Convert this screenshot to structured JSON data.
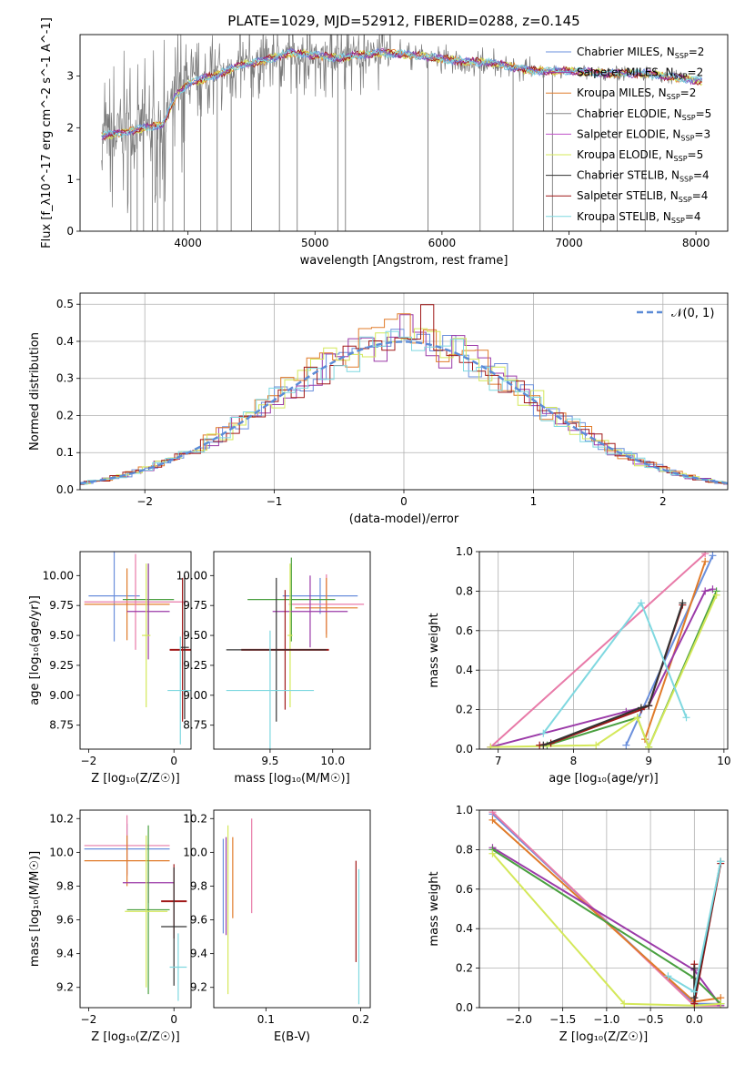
{
  "title": "PLATE=1029, MJD=52912, FIBERID=0288, z=0.145",
  "colors": {
    "chabrier_miles": "#6a8fdc",
    "salpeter_miles": "#9b3aa8",
    "kroupa_miles": "#e07b2a",
    "chabrier_elodie": "#888888",
    "salpeter_elodie": "#c050c8",
    "kroupa_elodie": "#d4e85a",
    "chabrier_stelib": "#333333",
    "salpeter_stelib": "#a01818",
    "kroupa_stelib": "#7fd8e0",
    "pink": "#e87aa8",
    "green": "#4aa040",
    "gaussian": "#5b8bd6"
  },
  "chart_data": [
    {
      "id": "spectrum",
      "type": "line",
      "xlabel": "wavelength [Angstrom, rest frame]",
      "ylabel": "Flux [f_λ10^-17 erg cm^-2 s^-1 A^-1]",
      "xlim": [
        3150,
        8250
      ],
      "ylim": [
        0,
        3.8
      ],
      "xticks": [
        4000,
        5000,
        6000,
        7000,
        8000
      ],
      "yticks": [
        0,
        1,
        2,
        3
      ],
      "legend_position": "upper right",
      "legend": [
        {
          "label": "Chabrier MILES, N",
          "sub": "SSP",
          "suffix": "=2",
          "color": "#6a8fdc"
        },
        {
          "label": "Salpeter MILES, N",
          "sub": "SSP",
          "suffix": "=2",
          "color": "#9b3aa8"
        },
        {
          "label": "Kroupa MILES, N",
          "sub": "SSP",
          "suffix": "=2",
          "color": "#e07b2a"
        },
        {
          "label": "Chabrier ELODIE, N",
          "sub": "SSP",
          "suffix": "=5",
          "color": "#888888"
        },
        {
          "label": "Salpeter ELODIE, N",
          "sub": "SSP",
          "suffix": "=3",
          "color": "#c050c8"
        },
        {
          "label": "Kroupa ELODIE, N",
          "sub": "SSP",
          "suffix": "=5",
          "color": "#d4e85a"
        },
        {
          "label": "Chabrier STELIB, N",
          "sub": "SSP",
          "suffix": "=4",
          "color": "#333333"
        },
        {
          "label": "Salpeter STELIB, N",
          "sub": "SSP",
          "suffix": "=4",
          "color": "#a01818"
        },
        {
          "label": "Kroupa STELIB, N",
          "sub": "SSP",
          "suffix": "=4",
          "color": "#7fd8e0"
        }
      ],
      "continuum_x": [
        3320,
        3500,
        3650,
        3800,
        3900,
        4000,
        4200,
        4400,
        4600,
        4800,
        5000,
        5200,
        5500,
        5800,
        6100,
        6400,
        6700,
        7000,
        7300,
        7600,
        7900,
        8050
      ],
      "continuum_y": [
        1.85,
        1.9,
        2.0,
        2.05,
        2.6,
        2.85,
        3.0,
        3.2,
        3.3,
        3.45,
        3.4,
        3.35,
        3.45,
        3.4,
        3.3,
        3.25,
        3.1,
        3.1,
        3.05,
        3.05,
        2.95,
        2.9
      ],
      "spikes": [
        3550,
        3600,
        3650,
        3720,
        3760,
        3810,
        3880,
        3970,
        4100,
        4230,
        4340,
        4500,
        4720,
        4860,
        5180,
        5240,
        5890,
        6300,
        6560,
        6800,
        6870,
        7250,
        7380,
        7600
      ]
    },
    {
      "id": "residuals",
      "type": "histogram",
      "xlabel": "(data-model)/error",
      "ylabel": "Normed distribution",
      "xlim": [
        -2.5,
        2.5
      ],
      "ylim": [
        0,
        0.53
      ],
      "xticks": [
        -2,
        -1,
        0,
        1,
        2
      ],
      "yticks": [
        0.0,
        0.1,
        0.2,
        0.3,
        0.4,
        0.5
      ],
      "grid": true,
      "legend": [
        {
          "label": "𝒩(0, 1)",
          "style": "dashed",
          "color": "#5b8bd6"
        }
      ],
      "legend_position": "upper right",
      "bin_width": 0.1,
      "series": [
        {
          "name": "Chabrier MILES",
          "color": "#6a8fdc",
          "offset": 0.0
        },
        {
          "name": "Salpeter MILES",
          "color": "#9b3aa8",
          "offset": 0.03
        },
        {
          "name": "Kroupa MILES",
          "color": "#e07b2a",
          "offset": 0.05
        },
        {
          "name": "Kroupa ELODIE",
          "color": "#d4e85a",
          "offset": 0.02
        },
        {
          "name": "Salpeter STELIB",
          "color": "#a01818",
          "offset": 0.07
        },
        {
          "name": "Kroupa STELIB",
          "color": "#7fd8e0",
          "offset": 0.04
        }
      ]
    },
    {
      "id": "age-vs-Z",
      "type": "errorbar",
      "xlabel": "Z [log₁₀(Z/Z☉)]",
      "ylabel": "age  [log₁₀(age/yr)]",
      "xlim": [
        -2.2,
        0.4
      ],
      "ylim": [
        8.55,
        10.2
      ],
      "xticks": [
        -2,
        0
      ],
      "yticks": [
        8.75,
        9.0,
        9.25,
        9.5,
        9.75,
        10.0
      ],
      "points": [
        {
          "x": -1.4,
          "xerr": 0.6,
          "y": 9.83,
          "yerr": 0.38,
          "color": "#6a8fdc"
        },
        {
          "x": -1.1,
          "xerr": 1.0,
          "y": 9.76,
          "yerr": 0.3,
          "color": "#e07b2a"
        },
        {
          "x": -0.9,
          "xerr": 1.2,
          "y": 9.78,
          "yerr": 0.4,
          "color": "#e87aa8"
        },
        {
          "x": -0.6,
          "xerr": 0.6,
          "y": 9.8,
          "yerr": 0.3,
          "color": "#4aa040"
        },
        {
          "x": -0.6,
          "xerr": 0.5,
          "y": 9.7,
          "yerr": 0.4,
          "color": "#9b3aa8"
        },
        {
          "x": -0.65,
          "xerr": 0.1,
          "y": 9.5,
          "yerr": 0.6,
          "color": "#d4e85a"
        },
        {
          "x": 0.2,
          "xerr": 0.3,
          "y": 9.38,
          "yerr": 0.6,
          "color": "#a01818"
        },
        {
          "x": 0.25,
          "xerr": 0.1,
          "y": 9.4,
          "yerr": 0.6,
          "color": "#333333"
        },
        {
          "x": 0.15,
          "xerr": 0.3,
          "y": 9.04,
          "yerr": 0.45,
          "color": "#7fd8e0"
        }
      ]
    },
    {
      "id": "age-vs-mass",
      "type": "errorbar",
      "xlabel": "mass [log₁₀(M/M☉)]",
      "ylabel": "",
      "xlim": [
        9.05,
        10.3
      ],
      "ylim": [
        8.55,
        10.2
      ],
      "xticks": [
        9.5,
        10.0
      ],
      "yticks": [
        8.75,
        9.0,
        9.25,
        9.5,
        9.75,
        10.0
      ],
      "points": [
        {
          "x": 9.9,
          "xerr": 0.3,
          "y": 9.83,
          "yerr": 0.15,
          "color": "#6a8fdc"
        },
        {
          "x": 9.95,
          "xerr": 0.3,
          "y": 9.76,
          "yerr": 0.25,
          "color": "#e87aa8"
        },
        {
          "x": 9.95,
          "xerr": 0.25,
          "y": 9.73,
          "yerr": 0.25,
          "color": "#e07b2a"
        },
        {
          "x": 9.67,
          "xerr": 0.35,
          "y": 9.8,
          "yerr": 0.35,
          "color": "#4aa040"
        },
        {
          "x": 9.82,
          "xerr": 0.3,
          "y": 9.7,
          "yerr": 0.3,
          "color": "#9b3aa8"
        },
        {
          "x": 9.66,
          "xerr": 0.02,
          "y": 9.5,
          "yerr": 0.6,
          "color": "#d4e85a"
        },
        {
          "x": 9.62,
          "xerr": 0.35,
          "y": 9.38,
          "yerr": 0.5,
          "color": "#a01818"
        },
        {
          "x": 9.55,
          "xerr": 0.4,
          "y": 9.38,
          "yerr": 0.6,
          "color": "#333333"
        },
        {
          "x": 9.5,
          "xerr": 0.35,
          "y": 9.04,
          "yerr": 0.5,
          "color": "#7fd8e0"
        }
      ]
    },
    {
      "id": "weight-vs-age",
      "type": "line",
      "xlabel": "age  [log₁₀(age/yr)]",
      "ylabel": "mass weight",
      "xlim": [
        6.75,
        10.05
      ],
      "ylim": [
        0,
        1.0
      ],
      "xticks": [
        7,
        8,
        9,
        10
      ],
      "yticks": [
        0.0,
        0.2,
        0.4,
        0.6,
        0.8,
        1.0
      ],
      "grid": true,
      "series": [
        {
          "color": "#e87aa8",
          "x": [
            6.9,
            9.75
          ],
          "y": [
            0.01,
            0.99
          ]
        },
        {
          "color": "#6a8fdc",
          "x": [
            8.7,
            9.85
          ],
          "y": [
            0.02,
            0.98
          ]
        },
        {
          "color": "#e07b2a",
          "x": [
            8.95,
            9.75
          ],
          "y": [
            0.05,
            0.95
          ]
        },
        {
          "color": "#9b3aa8",
          "x": [
            6.9,
            8.7,
            9.0,
            9.75,
            9.85
          ],
          "y": [
            0.01,
            0.19,
            0.22,
            0.8,
            0.81
          ]
        },
        {
          "color": "#4aa040",
          "x": [
            7.65,
            8.85,
            9.0,
            9.9
          ],
          "y": [
            0.02,
            0.16,
            0.01,
            0.8
          ]
        },
        {
          "color": "#d4e85a",
          "x": [
            6.9,
            8.3,
            8.85,
            9.0,
            9.9
          ],
          "y": [
            0.01,
            0.02,
            0.16,
            0.01,
            0.78
          ]
        },
        {
          "color": "#a01818",
          "x": [
            7.55,
            7.7,
            8.9,
            9.0,
            9.45
          ],
          "y": [
            0.02,
            0.03,
            0.2,
            0.22,
            0.73
          ]
        },
        {
          "color": "#333333",
          "x": [
            7.6,
            8.9,
            9.0,
            9.45
          ],
          "y": [
            0.02,
            0.21,
            0.22,
            0.74
          ]
        },
        {
          "color": "#7fd8e0",
          "x": [
            7.6,
            8.9,
            9.5
          ],
          "y": [
            0.08,
            0.74,
            0.16
          ]
        }
      ]
    },
    {
      "id": "mass-vs-Z",
      "type": "errorbar",
      "xlabel": "Z [log₁₀(Z/Z☉)]",
      "ylabel": "mass [log₁₀(M/M☉)]",
      "xlim": [
        -2.2,
        0.4
      ],
      "ylim": [
        9.08,
        10.25
      ],
      "xticks": [
        -2,
        0
      ],
      "yticks": [
        9.2,
        9.4,
        9.6,
        9.8,
        10.0,
        10.2
      ],
      "points": [
        {
          "x": -1.1,
          "xerr": 1.0,
          "y": 10.02,
          "yerr": 0.15,
          "color": "#6a8fdc"
        },
        {
          "x": -1.1,
          "xerr": 1.0,
          "y": 10.04,
          "yerr": 0.18,
          "color": "#e87aa8"
        },
        {
          "x": -1.1,
          "xerr": 1.0,
          "y": 9.95,
          "yerr": 0.15,
          "color": "#e07b2a"
        },
        {
          "x": -0.6,
          "xerr": 0.6,
          "y": 9.82,
          "yerr": 0.12,
          "color": "#9b3aa8"
        },
        {
          "x": -0.6,
          "xerr": 0.5,
          "y": 9.66,
          "yerr": 0.5,
          "color": "#4aa040"
        },
        {
          "x": -0.65,
          "xerr": 0.5,
          "y": 9.65,
          "yerr": 0.45,
          "color": "#d4e85a"
        },
        {
          "x": 0.0,
          "xerr": 0.3,
          "y": 9.71,
          "yerr": 0.22,
          "color": "#a01818"
        },
        {
          "x": 0.0,
          "xerr": 0.3,
          "y": 9.56,
          "yerr": 0.35,
          "color": "#333333"
        },
        {
          "x": 0.1,
          "xerr": 0.2,
          "y": 9.32,
          "yerr": 0.2,
          "color": "#7fd8e0"
        }
      ]
    },
    {
      "id": "mass-vs-ebv",
      "type": "errorbar",
      "xlabel": "E(B-V)",
      "ylabel": "",
      "xlim": [
        0.045,
        0.21
      ],
      "ylim": [
        9.08,
        10.25
      ],
      "xticks": [
        0.1,
        0.2
      ],
      "yticks": [
        9.2,
        9.4,
        9.6,
        9.8,
        10.0,
        10.2
      ],
      "points": [
        {
          "x": 0.055,
          "xerr": 0.0,
          "y": 9.8,
          "yerr": 0.28,
          "color": "#6a8fdc"
        },
        {
          "x": 0.058,
          "xerr": 0.0,
          "y": 9.8,
          "yerr": 0.29,
          "color": "#9b3aa8"
        },
        {
          "x": 0.06,
          "xerr": 0.0,
          "y": 9.66,
          "yerr": 0.5,
          "color": "#d4e85a"
        },
        {
          "x": 0.065,
          "xerr": 0.0,
          "y": 9.85,
          "yerr": 0.24,
          "color": "#e07b2a"
        },
        {
          "x": 0.085,
          "xerr": 0.0,
          "y": 9.92,
          "yerr": 0.28,
          "color": "#e87aa8"
        },
        {
          "x": 0.195,
          "xerr": 0.0,
          "y": 9.65,
          "yerr": 0.3,
          "color": "#a01818"
        },
        {
          "x": 0.198,
          "xerr": 0.0,
          "y": 9.5,
          "yerr": 0.4,
          "color": "#7fd8e0"
        }
      ]
    },
    {
      "id": "weight-vs-Z",
      "type": "line",
      "xlabel": "Z [log₁₀(Z/Z☉)]",
      "ylabel": "mass weight",
      "xlim": [
        -2.45,
        0.38
      ],
      "ylim": [
        0,
        1.0
      ],
      "xticks": [
        -2.0,
        -1.5,
        -1.0,
        -0.5,
        0.0
      ],
      "yticks": [
        0.0,
        0.2,
        0.4,
        0.6,
        0.8,
        1.0
      ],
      "grid": true,
      "series": [
        {
          "color": "#6a8fdc",
          "x": [
            -2.3,
            0.0,
            0.3
          ],
          "y": [
            0.98,
            0.02,
            0.02
          ]
        },
        {
          "color": "#e87aa8",
          "x": [
            -2.3,
            0.0,
            0.3
          ],
          "y": [
            0.99,
            0.01,
            0.01
          ]
        },
        {
          "color": "#e07b2a",
          "x": [
            -2.3,
            0.0,
            0.3
          ],
          "y": [
            0.95,
            0.03,
            0.05
          ]
        },
        {
          "color": "#9b3aa8",
          "x": [
            -2.3,
            0.0,
            0.3
          ],
          "y": [
            0.81,
            0.19,
            0.01
          ]
        },
        {
          "color": "#4aa040",
          "x": [
            -2.3,
            0.0,
            0.3
          ],
          "y": [
            0.8,
            0.15,
            0.02
          ]
        },
        {
          "color": "#d4e85a",
          "x": [
            -2.3,
            -0.8,
            0.0,
            0.3
          ],
          "y": [
            0.78,
            0.02,
            0.01,
            0.02
          ]
        },
        {
          "color": "#a01818",
          "x": [
            0.0,
            0.0,
            0.3
          ],
          "y": [
            0.22,
            0.02,
            0.73
          ]
        },
        {
          "color": "#333333",
          "x": [
            0.0,
            0.0,
            0.3
          ],
          "y": [
            0.2,
            0.05,
            0.74
          ]
        },
        {
          "color": "#7fd8e0",
          "x": [
            -0.3,
            0.0,
            0.3
          ],
          "y": [
            0.16,
            0.08,
            0.74
          ]
        }
      ]
    }
  ]
}
